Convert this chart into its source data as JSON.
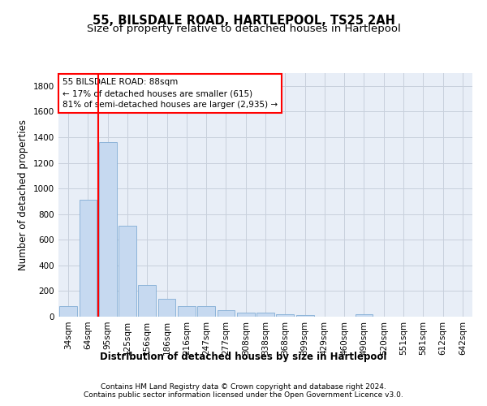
{
  "title": "55, BILSDALE ROAD, HARTLEPOOL, TS25 2AH",
  "subtitle": "Size of property relative to detached houses in Hartlepool",
  "xlabel": "Distribution of detached houses by size in Hartlepool",
  "ylabel": "Number of detached properties",
  "categories": [
    "34sqm",
    "64sqm",
    "95sqm",
    "125sqm",
    "156sqm",
    "186sqm",
    "216sqm",
    "247sqm",
    "277sqm",
    "308sqm",
    "338sqm",
    "368sqm",
    "399sqm",
    "429sqm",
    "460sqm",
    "490sqm",
    "520sqm",
    "551sqm",
    "581sqm",
    "612sqm",
    "642sqm"
  ],
  "values": [
    80,
    910,
    1360,
    710,
    250,
    140,
    85,
    85,
    50,
    30,
    30,
    20,
    15,
    0,
    0,
    20,
    0,
    0,
    0,
    0,
    0
  ],
  "bar_color": "#c6d9f0",
  "bar_edge_color": "#8db4d9",
  "vline_color": "red",
  "annotation_text": "55 BILSDALE ROAD: 88sqm\n← 17% of detached houses are smaller (615)\n81% of semi-detached houses are larger (2,935) →",
  "annotation_box_color": "white",
  "annotation_box_edge_color": "red",
  "ylim": [
    0,
    1900
  ],
  "yticks": [
    0,
    200,
    400,
    600,
    800,
    1000,
    1200,
    1400,
    1600,
    1800
  ],
  "grid_color": "#c8d0dc",
  "bg_color": "#e8eef7",
  "footer_line1": "Contains HM Land Registry data © Crown copyright and database right 2024.",
  "footer_line2": "Contains public sector information licensed under the Open Government Licence v3.0.",
  "title_fontsize": 10.5,
  "subtitle_fontsize": 9.5,
  "axis_label_fontsize": 8.5,
  "tick_fontsize": 7.5,
  "annotation_fontsize": 7.5,
  "footer_fontsize": 6.5
}
